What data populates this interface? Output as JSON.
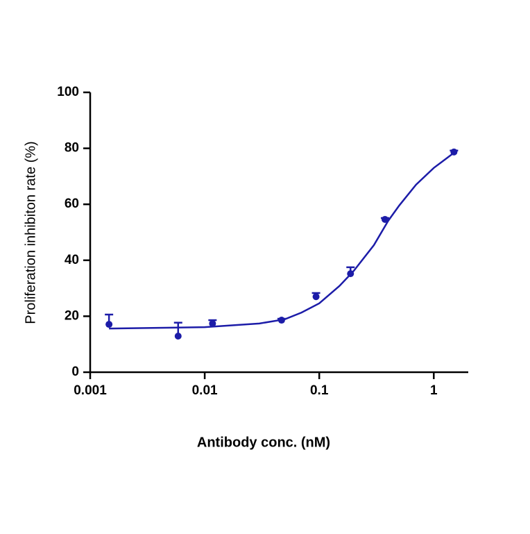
{
  "chart_data": {
    "type": "scatter",
    "x_label": "Antibody conc. (nM)",
    "y_label": "Proliferation inhibiton rate (%)",
    "x": [
      0.00146,
      0.00586,
      0.0117,
      0.0469,
      0.09375,
      0.1875,
      0.375,
      1.5
    ],
    "values": [
      17.1,
      12.9,
      17.4,
      18.6,
      27.0,
      35.2,
      54.6,
      78.7
    ],
    "errors": [
      3.5,
      4.8,
      1.2,
      0.5,
      1.3,
      2.3,
      0.5,
      0.5
    ],
    "color": "#1c1ca8",
    "fit": {
      "x": [
        0.00146,
        0.01,
        0.03,
        0.05,
        0.07,
        0.1,
        0.15,
        0.2,
        0.3,
        0.4,
        0.5,
        0.7,
        1.0,
        1.5
      ],
      "values": [
        15.6,
        16.1,
        17.4,
        18.9,
        21.3,
        24.6,
        30.8,
        36.2,
        45.4,
        54.1,
        59.6,
        67.0,
        73.0,
        78.4
      ]
    },
    "xlog": true,
    "xlim": [
      0.001,
      2
    ],
    "xticks": [
      0.001,
      0.01,
      0.1,
      1
    ],
    "ylim": [
      0,
      100
    ],
    "yticks": [
      0,
      20,
      40,
      60,
      80,
      100
    ]
  }
}
